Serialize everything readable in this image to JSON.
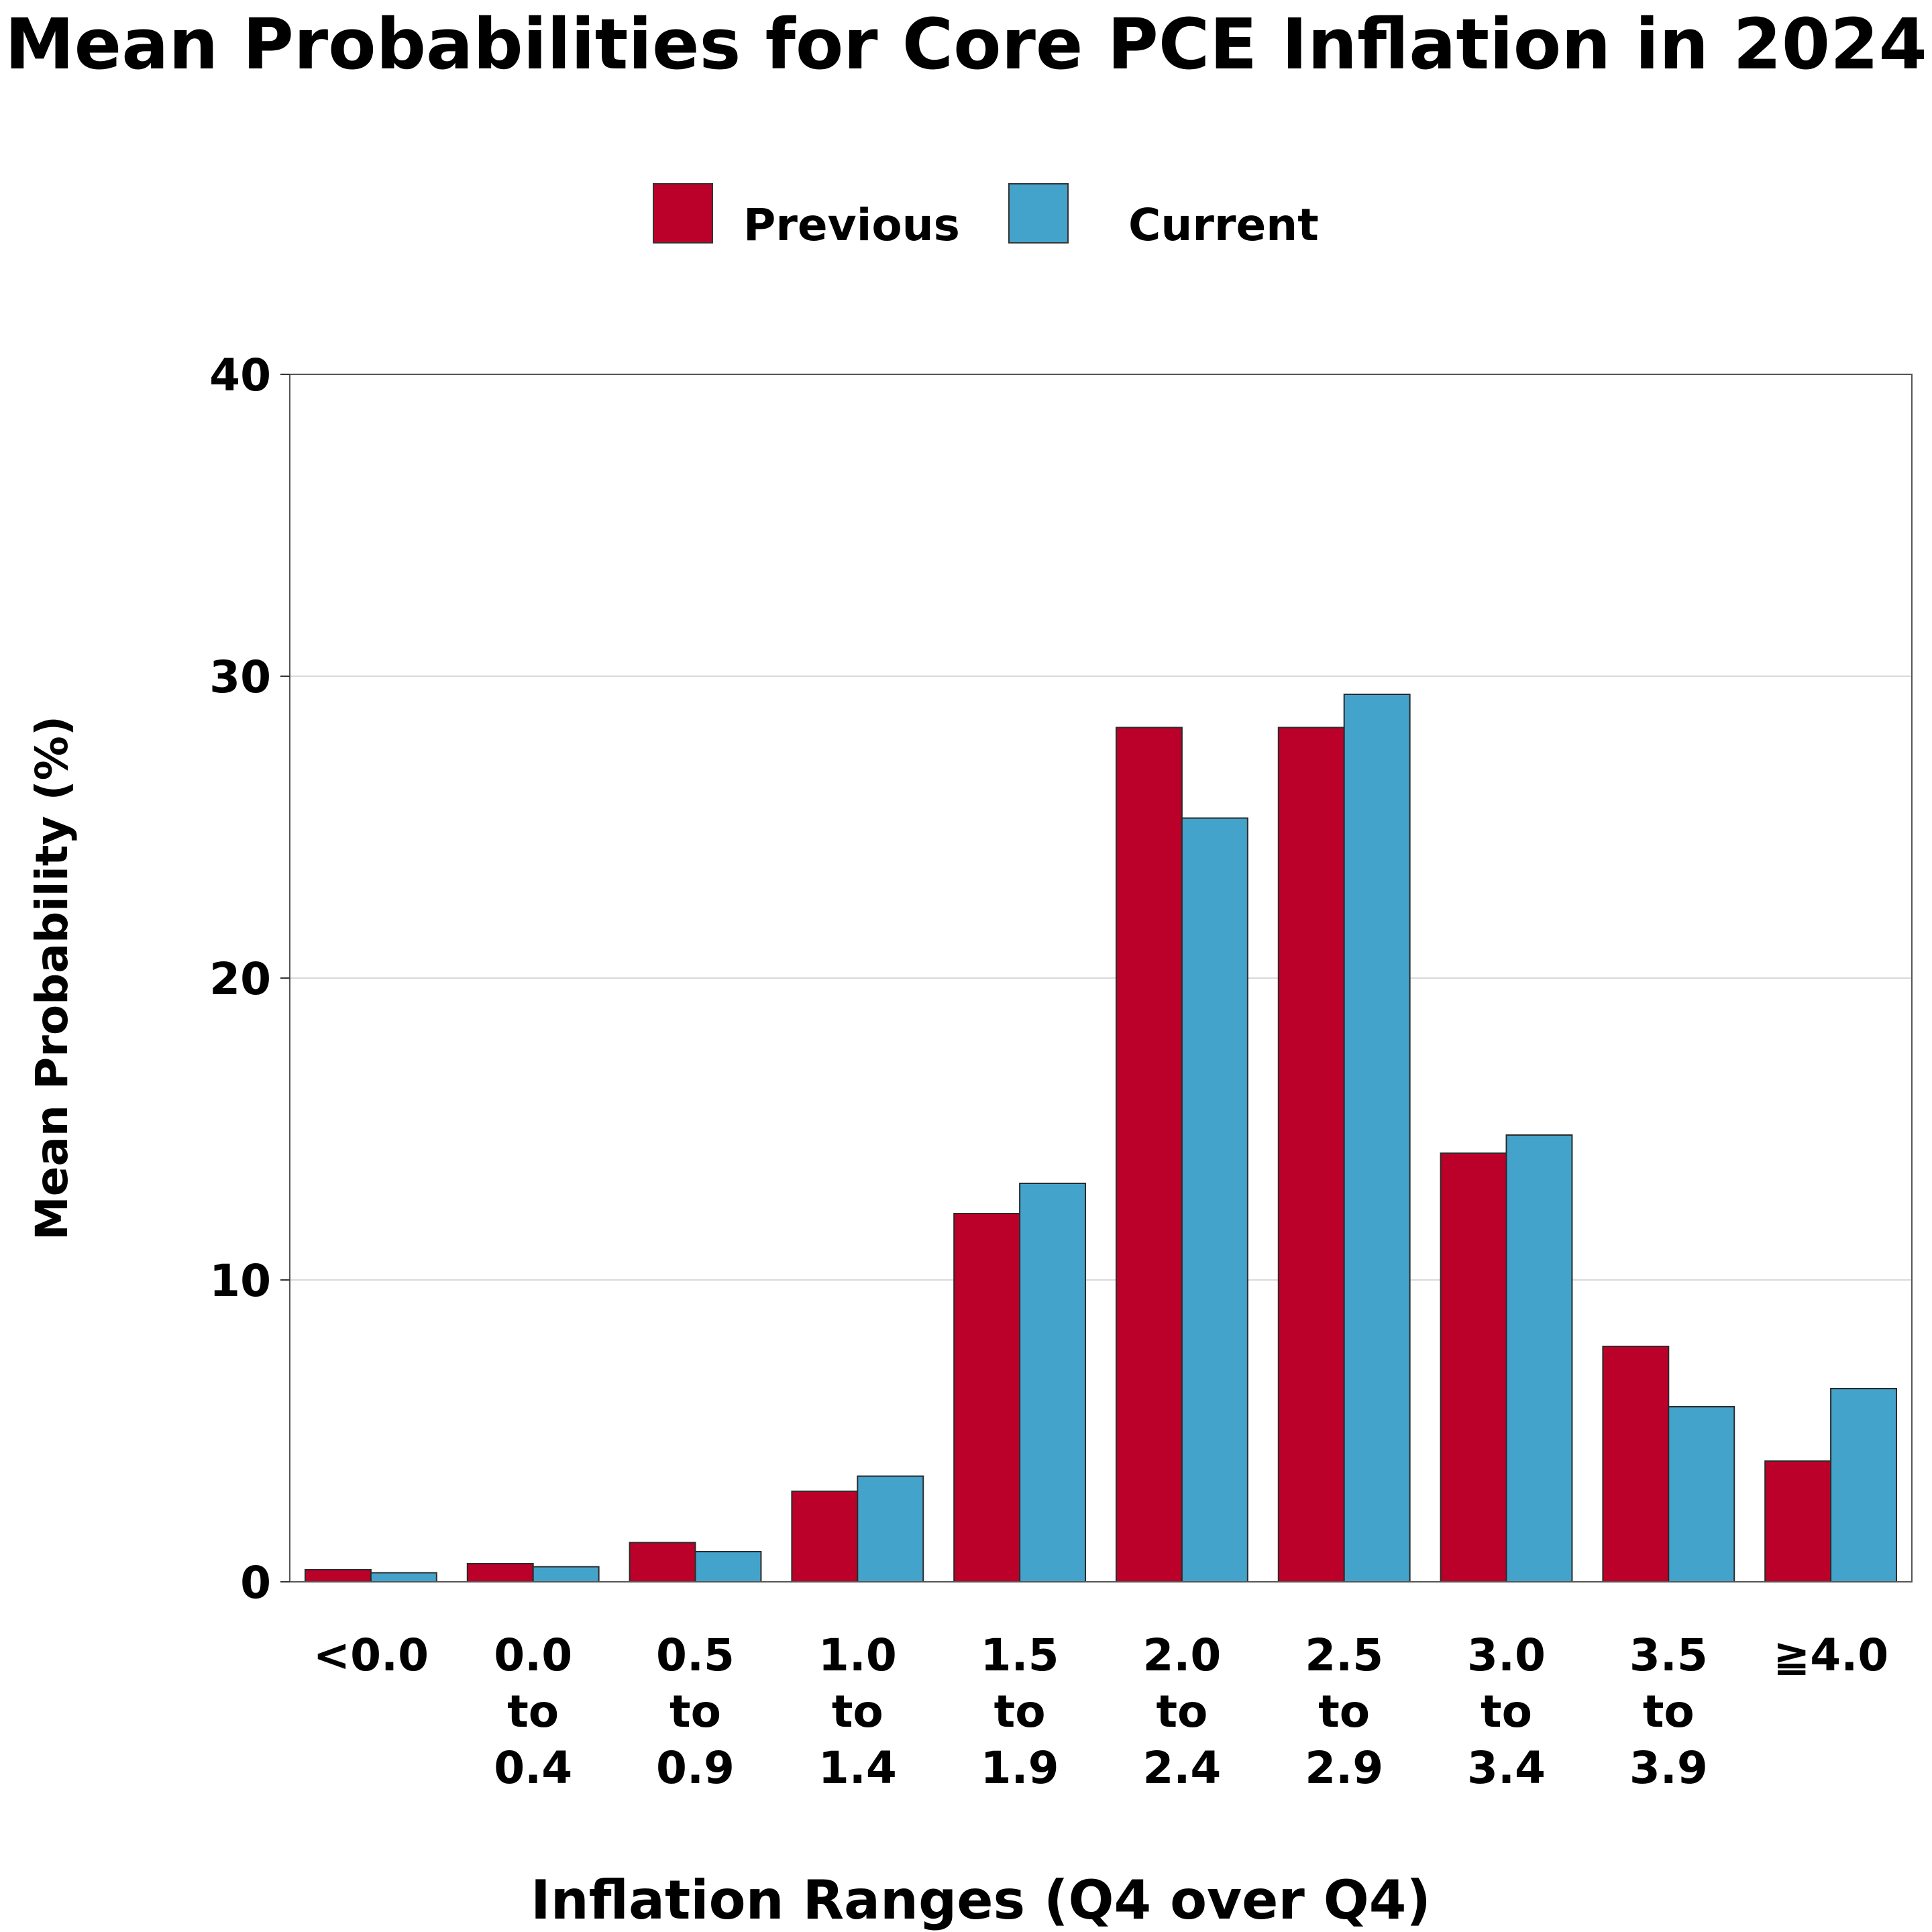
{
  "chart_data": {
    "type": "bar",
    "title": "Mean Probabilities for Core PCE Inflation in 2024",
    "xlabel": "Inflation Ranges (Q4 over Q4)",
    "ylabel": "Mean Probability (%)",
    "ylim": [
      0,
      40
    ],
    "yticks": [
      "0",
      "10",
      "20",
      "30",
      "40"
    ],
    "grid": true,
    "legend_position": "top-center",
    "categories": [
      [
        "<0.0"
      ],
      [
        "0.0",
        "to",
        "0.4"
      ],
      [
        "0.5",
        "to",
        "0.9"
      ],
      [
        "1.0",
        "to",
        "1.4"
      ],
      [
        "1.5",
        "to",
        "1.9"
      ],
      [
        "2.0",
        "to",
        "2.4"
      ],
      [
        "2.5",
        "to",
        "2.9"
      ],
      [
        "3.0",
        "to",
        "3.4"
      ],
      [
        "3.5",
        "to",
        "3.9"
      ],
      [
        "≧4.0"
      ]
    ],
    "series": [
      {
        "name": "Previous",
        "color": "#bb0029",
        "values": [
          0.4,
          0.6,
          1.3,
          3.0,
          12.2,
          28.3,
          28.3,
          14.2,
          7.8,
          4.0
        ]
      },
      {
        "name": "Current",
        "color": "#44a3cb",
        "values": [
          0.3,
          0.5,
          1.0,
          3.5,
          13.2,
          25.3,
          29.4,
          14.8,
          5.8,
          6.4
        ]
      }
    ]
  }
}
